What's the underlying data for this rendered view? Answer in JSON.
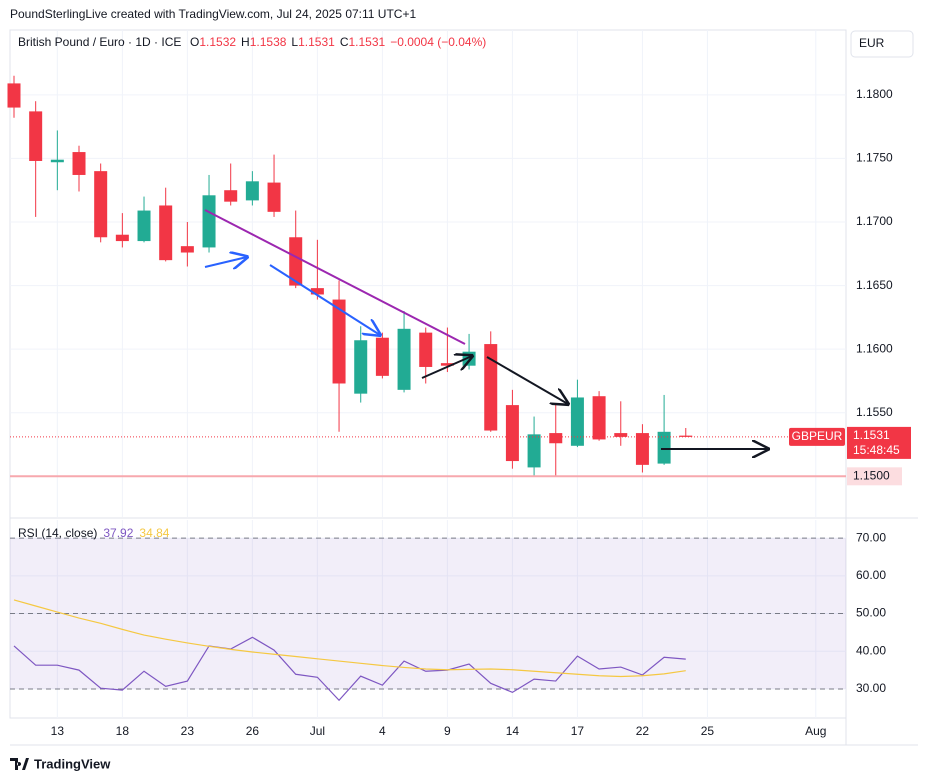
{
  "header": {
    "text": "PoundSterlingLive created with TradingView.com, Jul 24, 2025 07:11 UTC+1"
  },
  "currency": "EUR",
  "footer": "TradingView",
  "chart_data": [
    {
      "type": "candlestick",
      "title": "British Pound / Euro · 1D · ICE",
      "ohlc_labels": [
        "O",
        "H",
        "L",
        "C"
      ],
      "change": "−0.0004 (−0.04%)",
      "symbol_label": "GBPEUR",
      "countdown": "15:48:45",
      "up_color": "#22ab94",
      "down_color": "#f23645",
      "categories": [
        null,
        null,
        "13",
        null,
        null,
        "18",
        null,
        null,
        "23",
        null,
        null,
        "26",
        null,
        null,
        "Jul",
        null,
        null,
        "4",
        null,
        null,
        "9",
        null,
        null,
        "14",
        null,
        null,
        "17",
        null,
        null,
        "22",
        null,
        null,
        "25",
        null,
        null,
        null,
        null,
        "Aug"
      ],
      "open": [
        1.1809,
        1.1787,
        1.1747,
        1.1755,
        1.174,
        1.169,
        1.1685,
        1.1713,
        1.1681,
        1.168,
        1.1725,
        1.1717,
        1.1731,
        1.1688,
        1.1648,
        1.1639,
        1.1565,
        1.1609,
        1.1568,
        1.1613,
        1.1589,
        1.1587,
        1.1604,
        1.1556,
        1.1507,
        1.1534,
        1.1524,
        1.1563,
        1.1534,
        1.1534,
        1.151,
        1.1532,
        null,
        null,
        null,
        null,
        null,
        null
      ],
      "high": [
        1.1815,
        1.1795,
        1.1772,
        1.176,
        1.1746,
        1.1707,
        1.172,
        1.1727,
        1.17,
        1.1737,
        1.1746,
        1.174,
        1.1753,
        1.1709,
        1.1686,
        1.1654,
        1.1618,
        1.1613,
        1.163,
        1.1617,
        1.1617,
        1.1612,
        1.1614,
        1.1568,
        1.1547,
        1.1557,
        1.1576,
        1.1567,
        1.1559,
        1.1541,
        1.1564,
        1.1538,
        null,
        null,
        null,
        null,
        null,
        null
      ],
      "low": [
        1.1782,
        1.1704,
        1.1725,
        1.1724,
        1.1684,
        1.168,
        1.1684,
        1.1669,
        1.1665,
        1.1676,
        1.1713,
        1.1713,
        1.1704,
        1.1648,
        1.1639,
        1.1535,
        1.1558,
        1.1577,
        1.1566,
        1.1573,
        1.1582,
        1.1584,
        1.1535,
        1.1506,
        1.15,
        1.15,
        1.1523,
        1.1528,
        1.1524,
        1.1503,
        1.1509,
        1.1531,
        null,
        null,
        null,
        null,
        null,
        null
      ],
      "close": [
        1.179,
        1.1748,
        1.1749,
        1.1737,
        1.1688,
        1.1685,
        1.1709,
        1.167,
        1.1676,
        1.1721,
        1.1716,
        1.1732,
        1.1708,
        1.165,
        1.1643,
        1.1573,
        1.1607,
        1.1579,
        1.1616,
        1.1586,
        1.1587,
        1.1598,
        1.1536,
        1.1512,
        1.1533,
        1.1526,
        1.1562,
        1.1529,
        1.1531,
        1.1509,
        1.1535,
        1.1531,
        null,
        null,
        null,
        null,
        null,
        null
      ],
      "ylim": [
        1.1468,
        1.1851
      ],
      "yticks": [
        {
          "value": 1.15,
          "label": "1.1500"
        },
        {
          "value": 1.155,
          "label": "1.1550"
        },
        {
          "value": 1.16,
          "label": "1.1600"
        },
        {
          "value": 1.165,
          "label": "1.1650"
        },
        {
          "value": 1.17,
          "label": "1.1700"
        },
        {
          "value": 1.175,
          "label": "1.1750"
        },
        {
          "value": 1.18,
          "label": "1.1800"
        }
      ],
      "level_line": {
        "value": 1.15,
        "label": "1.1500",
        "color": "#f7a8ae"
      },
      "grid": true
    },
    {
      "type": "line",
      "title": "RSI (14, close)",
      "series": [
        {
          "color": "#7e57c2",
          "values": [
            41.4,
            36.3,
            36.3,
            35.0,
            30.2,
            29.7,
            34.7,
            30.7,
            32.1,
            41.4,
            40.6,
            43.7,
            40.3,
            33.9,
            33.1,
            27.0,
            33.4,
            31.0,
            37.4,
            34.7,
            35.0,
            36.6,
            31.5,
            29.1,
            32.6,
            32.1,
            38.7,
            35.3,
            35.8,
            33.7,
            38.4,
            37.92,
            null,
            null,
            null,
            null,
            null,
            null
          ]
        },
        {
          "color": "#f5c842",
          "values": [
            53.6,
            52.0,
            50.4,
            48.8,
            47.4,
            45.8,
            44.3,
            43.2,
            42.2,
            41.3,
            40.5,
            39.8,
            39.2,
            38.6,
            38.0,
            37.4,
            36.8,
            36.2,
            35.7,
            35.3,
            35.1,
            35.2,
            35.3,
            35.1,
            34.7,
            34.3,
            33.9,
            33.5,
            33.3,
            33.5,
            34.0,
            34.84,
            null,
            null,
            null,
            null,
            null,
            null
          ]
        }
      ],
      "ylim": [
        22.3,
        74.8
      ],
      "yticks": [
        {
          "value": 30,
          "label": "30.00"
        },
        {
          "value": 40,
          "label": "40.00"
        },
        {
          "value": 50,
          "label": "50.00"
        },
        {
          "value": 60,
          "label": "60.00"
        },
        {
          "value": 70,
          "label": "70.00"
        }
      ],
      "band": [
        30,
        70
      ],
      "band_color": "#7e57c2",
      "dashed_levels": [
        30,
        50,
        70
      ]
    }
  ]
}
